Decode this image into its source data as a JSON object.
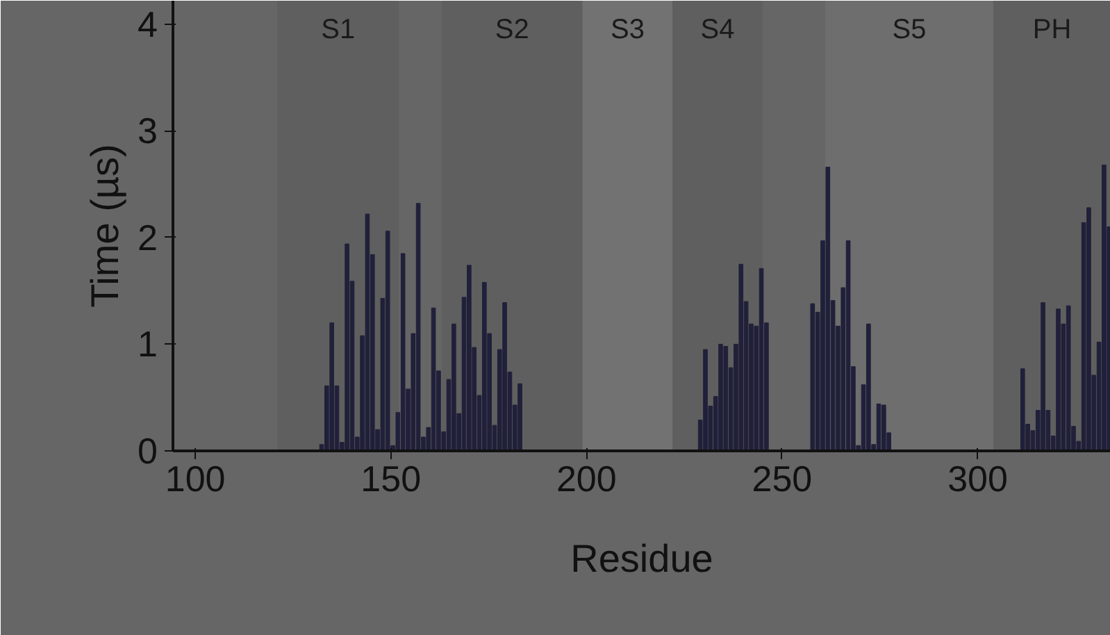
{
  "chart_data": {
    "type": "bar",
    "xlabel": "Residue",
    "ylabel": "Time (µs)",
    "xlim": [
      94.3,
      334
    ],
    "ylim": [
      0,
      4.22
    ],
    "xticks": [
      100,
      150,
      200,
      250,
      300
    ],
    "yticks": [
      0,
      1,
      2,
      3,
      4
    ],
    "grid": false,
    "bands": [
      {
        "axis": "x",
        "from": 121,
        "to": 152,
        "label": "S1",
        "color": "#5f5f5f"
      },
      {
        "axis": "x",
        "from": 163,
        "to": 199,
        "label": "S2",
        "color": "#5f5f5f"
      },
      {
        "axis": "x",
        "from": 199,
        "to": 222,
        "label": "S3",
        "color": "#727272"
      },
      {
        "axis": "x",
        "from": 222,
        "to": 245,
        "label": "S4",
        "color": "#5f5f5f"
      },
      {
        "axis": "x",
        "from": 261,
        "to": 304,
        "label": "S5",
        "color": "#6e6e6e"
      },
      {
        "axis": "x",
        "from": 304,
        "to": 334,
        "label": "PH",
        "color": "#5f5f5f"
      }
    ],
    "series": [
      {
        "color": "#20203a",
        "x": [
          132.3,
          133.6,
          134.9,
          136.2,
          137.5,
          138.8,
          140.1,
          141.4,
          142.7,
          144.0,
          145.3,
          146.6,
          147.9,
          149.2,
          150.5,
          151.8,
          153.1,
          154.4,
          155.7,
          157.0,
          158.3,
          159.6,
          160.9,
          162.2,
          163.5,
          164.8,
          166.1,
          167.4,
          168.7,
          170.0,
          171.3,
          172.6,
          173.9,
          175.2,
          176.5,
          177.8,
          179.1,
          180.4,
          181.7,
          183.0
        ],
        "values": [
          0.06,
          0.61,
          1.2,
          0.61,
          0.08,
          1.94,
          1.59,
          0.13,
          1.08,
          2.22,
          1.84,
          0.2,
          1.43,
          2.06,
          0.05,
          0.36,
          1.85,
          0.58,
          1.1,
          2.32,
          0.13,
          0.22,
          1.34,
          0.75,
          0.18,
          0.67,
          1.19,
          0.35,
          1.44,
          1.74,
          0.97,
          0.52,
          1.58,
          1.1,
          0.24,
          0.95,
          1.39,
          0.74,
          0.43,
          0.63
        ]
      },
      {
        "color": "#20203a",
        "x": [
          229.1,
          230.4,
          231.7,
          233.0,
          234.3,
          235.6,
          236.9,
          238.2,
          239.5,
          240.8,
          242.1,
          243.4,
          244.7,
          246.0
        ],
        "values": [
          0.29,
          0.95,
          0.42,
          0.51,
          1.0,
          0.98,
          0.78,
          1.0,
          1.75,
          1.4,
          1.19,
          1.17,
          1.71,
          1.2
        ]
      },
      {
        "color": "#20203a",
        "x": [
          257.8,
          259.1,
          260.4,
          261.7,
          263.0,
          264.3,
          265.6,
          266.9,
          268.2,
          269.5,
          270.8,
          272.1,
          273.4,
          274.7,
          276.0,
          277.3
        ],
        "values": [
          1.38,
          1.3,
          1.97,
          2.66,
          1.41,
          1.17,
          1.53,
          1.97,
          0.79,
          0.05,
          0.62,
          1.19,
          0.06,
          0.44,
          0.43,
          0.17
        ]
      },
      {
        "color": "#20203a",
        "x": [
          311.5,
          312.8,
          314.1,
          315.4,
          316.7,
          318.0,
          319.3,
          320.6,
          321.9,
          323.2,
          324.5,
          325.8,
          327.1,
          328.4,
          329.7,
          331.0,
          332.3,
          333.6
        ],
        "values": [
          0.77,
          0.25,
          0.19,
          0.38,
          1.39,
          0.38,
          0.14,
          1.33,
          1.19,
          1.36,
          0.23,
          0.09,
          2.14,
          2.28,
          0.71,
          1.02,
          2.68,
          2.1
        ]
      }
    ]
  }
}
